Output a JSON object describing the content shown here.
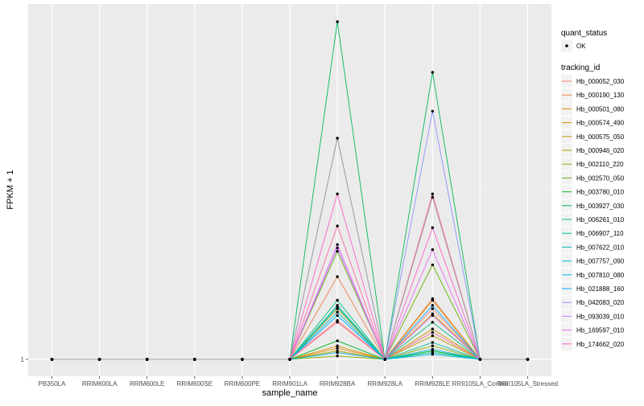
{
  "chart_data": {
    "type": "line",
    "xlabel": "sample_name",
    "ylabel": "FPKM + 1",
    "y_ticks": [
      "1"
    ],
    "categories": [
      "PB350LA",
      "RRIM600LA",
      "RRIM600LE",
      "RRIM600SE",
      "RRIM600PE",
      "RRIM901LA",
      "RRIM928BA",
      "RRIM928LA",
      "RRIM928LE",
      "RRII105LA_Control",
      "RRII105LA_Stressed"
    ],
    "ylim": [
      0,
      1
    ],
    "grid": true,
    "legend_position": "right",
    "legend_groups": [
      {
        "title": "quant_status",
        "entries": [
          "OK"
        ]
      },
      {
        "title": "tracking_id",
        "entries": []
      }
    ],
    "series": [
      {
        "name": "Hb_000052_030",
        "color": "#F8766D",
        "values": [
          0,
          0,
          0,
          0,
          0,
          0,
          0.115,
          0,
          0.15,
          0,
          0
        ]
      },
      {
        "name": "Hb_000190_130",
        "color": "#EF7F49",
        "values": [
          0,
          0,
          0,
          0,
          0,
          0,
          0.245,
          0,
          0.18,
          0,
          0
        ]
      },
      {
        "name": "Hb_000501_080",
        "color": "#E38900",
        "values": [
          0,
          0,
          0,
          0,
          0,
          0,
          0.033,
          0,
          0.175,
          0,
          0
        ]
      },
      {
        "name": "Hb_000574_490",
        "color": "#D39200",
        "values": [
          0,
          0,
          0,
          0,
          0,
          0,
          0.04,
          0,
          0.135,
          0,
          0
        ]
      },
      {
        "name": "Hb_000575_050",
        "color": "#C09B00",
        "values": [
          0,
          0,
          0,
          0,
          0,
          0,
          0.15,
          0,
          0.09,
          0,
          0
        ]
      },
      {
        "name": "Hb_000946_020",
        "color": "#A9A400",
        "values": [
          0,
          0,
          0,
          0,
          0,
          0,
          0.025,
          0,
          0.07,
          0,
          0
        ]
      },
      {
        "name": "Hb_002110_220",
        "color": "#8EAB00",
        "values": [
          0,
          0,
          0,
          0,
          0,
          0,
          0.01,
          0,
          0.04,
          0,
          0
        ]
      },
      {
        "name": "Hb_002570_050",
        "color": "#64B200",
        "values": [
          0,
          0,
          0,
          0,
          0,
          0,
          0.32,
          0,
          0.28,
          0,
          0
        ]
      },
      {
        "name": "Hb_003780_010",
        "color": "#00B81F",
        "values": [
          0,
          0,
          0,
          0,
          0,
          0,
          0.055,
          0,
          0.025,
          0,
          0
        ]
      },
      {
        "name": "Hb_003927_030",
        "color": "#00BC59",
        "values": [
          0,
          0,
          0,
          0,
          0,
          0,
          1.0,
          0,
          0.85,
          0,
          0
        ]
      },
      {
        "name": "Hb_006261_010",
        "color": "#00BF7D",
        "values": [
          0,
          0,
          0,
          0,
          0,
          0,
          0.175,
          0,
          0.11,
          0,
          0
        ]
      },
      {
        "name": "Hb_006907_110",
        "color": "#00C09B",
        "values": [
          0,
          0,
          0,
          0,
          0,
          0,
          0.16,
          0,
          0.05,
          0,
          0
        ]
      },
      {
        "name": "Hb_007622_010",
        "color": "#00BFB7",
        "values": [
          0,
          0,
          0,
          0,
          0,
          0,
          0.155,
          0,
          0.02,
          0,
          0
        ]
      },
      {
        "name": "Hb_007757_090",
        "color": "#00BCD1",
        "values": [
          0,
          0,
          0,
          0,
          0,
          0,
          0.14,
          0,
          0.015,
          0,
          0
        ]
      },
      {
        "name": "Hb_007810_080",
        "color": "#00B6E9",
        "values": [
          0,
          0,
          0,
          0,
          0,
          0,
          0.02,
          0,
          0.03,
          0,
          0
        ]
      },
      {
        "name": "Hb_021888_160",
        "color": "#00ACFC",
        "values": [
          0,
          0,
          0,
          0,
          0,
          0,
          0.13,
          0,
          0.16,
          0,
          0
        ]
      },
      {
        "name": "Hb_042083_020",
        "color": "#8B93FF",
        "values": [
          0,
          0,
          0,
          0,
          0,
          0,
          0.655,
          0,
          0.735,
          0,
          0
        ]
      },
      {
        "name": "Hb_093039_010",
        "color": "#C77CFF",
        "values": [
          0,
          0,
          0,
          0,
          0,
          0,
          0.33,
          0,
          0.13,
          0,
          0
        ]
      },
      {
        "name": "Hb_169597_010",
        "color": "#E76BF3",
        "values": [
          0,
          0,
          0,
          0,
          0,
          0,
          0.34,
          0,
          0.325,
          0,
          0
        ]
      },
      {
        "name": "Hb_174662_020",
        "color": "#FD61D1",
        "values": [
          0,
          0,
          0,
          0,
          0,
          0,
          0.49,
          0,
          0.39,
          0,
          0
        ]
      },
      {
        "name": "",
        "color": "#FF67A4",
        "values": [
          0,
          0,
          0,
          0,
          0,
          0,
          0.395,
          0,
          0.49,
          0,
          0
        ]
      },
      {
        "name": "",
        "color": "#FF6C91",
        "values": [
          0,
          0,
          0,
          0,
          0,
          0,
          0.11,
          0,
          0.08,
          0,
          0
        ]
      },
      {
        "name": "",
        "color": "#9E9E9E",
        "values": [
          0,
          0,
          0,
          0,
          0,
          0,
          0.655,
          0,
          0.48,
          0,
          0
        ]
      }
    ]
  }
}
